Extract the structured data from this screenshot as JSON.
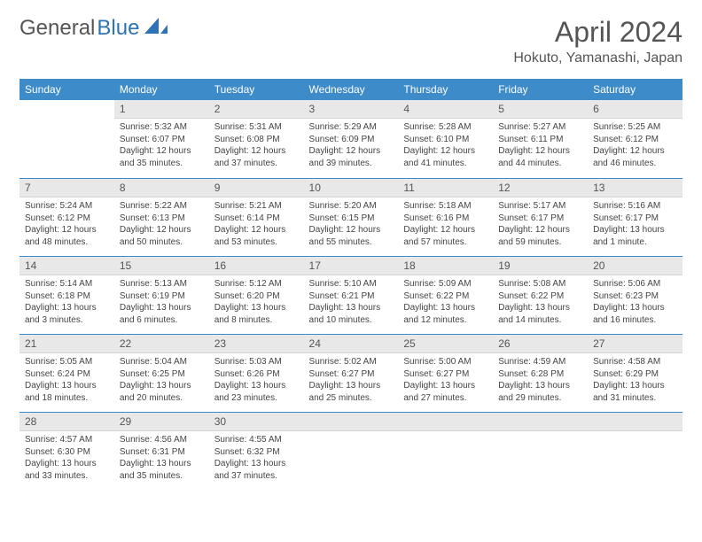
{
  "brand": {
    "part1": "General",
    "part2": "Blue"
  },
  "title": "April 2024",
  "subtitle": "Hokuto, Yamanashi, Japan",
  "colors": {
    "header_bg": "#3d8bc9",
    "header_fg": "#ffffff",
    "daynum_bg": "#e8e8e8",
    "row_sep": "#3d8bc9",
    "text": "#444444",
    "title": "#555555"
  },
  "weekdays": [
    "Sunday",
    "Monday",
    "Tuesday",
    "Wednesday",
    "Thursday",
    "Friday",
    "Saturday"
  ],
  "grid": [
    [
      null,
      {
        "n": "1",
        "sr": "5:32 AM",
        "ss": "6:07 PM",
        "dl": "12 hours and 35 minutes."
      },
      {
        "n": "2",
        "sr": "5:31 AM",
        "ss": "6:08 PM",
        "dl": "12 hours and 37 minutes."
      },
      {
        "n": "3",
        "sr": "5:29 AM",
        "ss": "6:09 PM",
        "dl": "12 hours and 39 minutes."
      },
      {
        "n": "4",
        "sr": "5:28 AM",
        "ss": "6:10 PM",
        "dl": "12 hours and 41 minutes."
      },
      {
        "n": "5",
        "sr": "5:27 AM",
        "ss": "6:11 PM",
        "dl": "12 hours and 44 minutes."
      },
      {
        "n": "6",
        "sr": "5:25 AM",
        "ss": "6:12 PM",
        "dl": "12 hours and 46 minutes."
      }
    ],
    [
      {
        "n": "7",
        "sr": "5:24 AM",
        "ss": "6:12 PM",
        "dl": "12 hours and 48 minutes."
      },
      {
        "n": "8",
        "sr": "5:22 AM",
        "ss": "6:13 PM",
        "dl": "12 hours and 50 minutes."
      },
      {
        "n": "9",
        "sr": "5:21 AM",
        "ss": "6:14 PM",
        "dl": "12 hours and 53 minutes."
      },
      {
        "n": "10",
        "sr": "5:20 AM",
        "ss": "6:15 PM",
        "dl": "12 hours and 55 minutes."
      },
      {
        "n": "11",
        "sr": "5:18 AM",
        "ss": "6:16 PM",
        "dl": "12 hours and 57 minutes."
      },
      {
        "n": "12",
        "sr": "5:17 AM",
        "ss": "6:17 PM",
        "dl": "12 hours and 59 minutes."
      },
      {
        "n": "13",
        "sr": "5:16 AM",
        "ss": "6:17 PM",
        "dl": "13 hours and 1 minute."
      }
    ],
    [
      {
        "n": "14",
        "sr": "5:14 AM",
        "ss": "6:18 PM",
        "dl": "13 hours and 3 minutes."
      },
      {
        "n": "15",
        "sr": "5:13 AM",
        "ss": "6:19 PM",
        "dl": "13 hours and 6 minutes."
      },
      {
        "n": "16",
        "sr": "5:12 AM",
        "ss": "6:20 PM",
        "dl": "13 hours and 8 minutes."
      },
      {
        "n": "17",
        "sr": "5:10 AM",
        "ss": "6:21 PM",
        "dl": "13 hours and 10 minutes."
      },
      {
        "n": "18",
        "sr": "5:09 AM",
        "ss": "6:22 PM",
        "dl": "13 hours and 12 minutes."
      },
      {
        "n": "19",
        "sr": "5:08 AM",
        "ss": "6:22 PM",
        "dl": "13 hours and 14 minutes."
      },
      {
        "n": "20",
        "sr": "5:06 AM",
        "ss": "6:23 PM",
        "dl": "13 hours and 16 minutes."
      }
    ],
    [
      {
        "n": "21",
        "sr": "5:05 AM",
        "ss": "6:24 PM",
        "dl": "13 hours and 18 minutes."
      },
      {
        "n": "22",
        "sr": "5:04 AM",
        "ss": "6:25 PM",
        "dl": "13 hours and 20 minutes."
      },
      {
        "n": "23",
        "sr": "5:03 AM",
        "ss": "6:26 PM",
        "dl": "13 hours and 23 minutes."
      },
      {
        "n": "24",
        "sr": "5:02 AM",
        "ss": "6:27 PM",
        "dl": "13 hours and 25 minutes."
      },
      {
        "n": "25",
        "sr": "5:00 AM",
        "ss": "6:27 PM",
        "dl": "13 hours and 27 minutes."
      },
      {
        "n": "26",
        "sr": "4:59 AM",
        "ss": "6:28 PM",
        "dl": "13 hours and 29 minutes."
      },
      {
        "n": "27",
        "sr": "4:58 AM",
        "ss": "6:29 PM",
        "dl": "13 hours and 31 minutes."
      }
    ],
    [
      {
        "n": "28",
        "sr": "4:57 AM",
        "ss": "6:30 PM",
        "dl": "13 hours and 33 minutes."
      },
      {
        "n": "29",
        "sr": "4:56 AM",
        "ss": "6:31 PM",
        "dl": "13 hours and 35 minutes."
      },
      {
        "n": "30",
        "sr": "4:55 AM",
        "ss": "6:32 PM",
        "dl": "13 hours and 37 minutes."
      },
      null,
      null,
      null,
      null
    ]
  ],
  "labels": {
    "sunrise": "Sunrise:",
    "sunset": "Sunset:",
    "daylight": "Daylight:"
  }
}
